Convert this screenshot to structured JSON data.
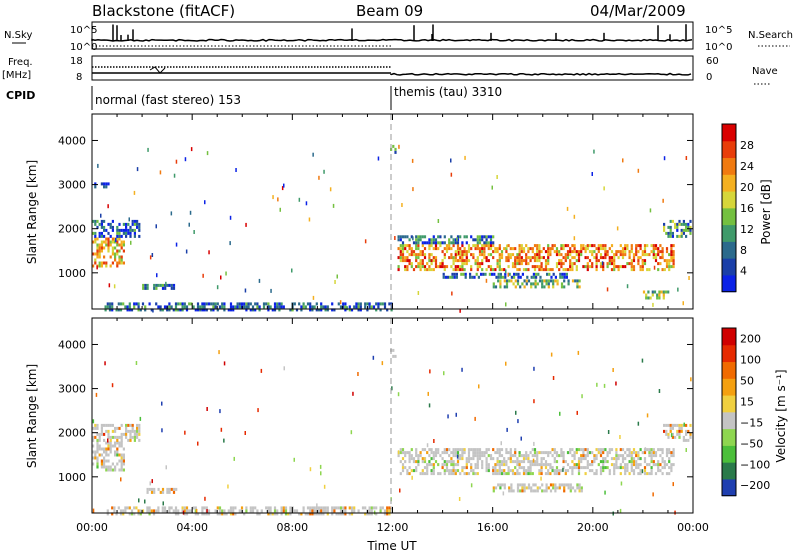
{
  "header": {
    "station": "Blackstone (fitACF)",
    "beam": "Beam 09",
    "date": "04/Mar/2009"
  },
  "top_panels": {
    "nsky_label": "N.Sky",
    "nsearch_label": "N.Search",
    "noise_ticks": [
      "10^5",
      "10^0"
    ],
    "freq_label_1": "Freq.",
    "freq_label_2": "[MHz]",
    "freq_ticks": [
      "18",
      "8"
    ],
    "nave_label": "Nave",
    "nave_ticks": [
      "60",
      "0"
    ],
    "cpid_label": "CPID",
    "cpid_segments": [
      {
        "label": "normal (fast stereo) 153",
        "start_hour": 0,
        "end_hour": 12
      },
      {
        "label": "themis (tau) 3310",
        "start_hour": 12,
        "end_hour": 24
      }
    ]
  },
  "colors": {
    "power_scale": [
      "#0b22e6",
      "#1a3fa8",
      "#2b6a8c",
      "#3f9a6a",
      "#74c040",
      "#d6d63a",
      "#f4b020",
      "#f07a10",
      "#e83d0a",
      "#d90000"
    ],
    "velocity_scale": [
      "#1f3fb0",
      "#2a7a4a",
      "#4bbf3a",
      "#8ed650",
      "#c4c4c4",
      "#f0d040",
      "#f4a010",
      "#f06a00",
      "#e62a00",
      "#d00000"
    ]
  },
  "chart_data": [
    {
      "type": "heatmap",
      "name": "power",
      "ylabel": "Slant Range [km]",
      "yticks": [
        1000,
        2000,
        3000,
        4000
      ],
      "ylim": [
        180,
        4600
      ],
      "xlim": [
        0,
        24
      ],
      "xticks": [
        "00:00",
        "04:00",
        "08:00",
        "12:00",
        "16:00",
        "20:00",
        "00:00"
      ],
      "colorbar": {
        "label": "Power [dB]",
        "ticks": [
          4,
          8,
          12,
          16,
          20,
          24,
          28
        ],
        "range": [
          0,
          32
        ]
      },
      "regions": [
        {
          "t0": 0.0,
          "t1": 1.3,
          "r0": 1150,
          "r1": 1800,
          "level": 0.65
        },
        {
          "t0": 0.0,
          "t1": 1.9,
          "r0": 1800,
          "r1": 2200,
          "level": 0.2
        },
        {
          "t0": 0.0,
          "t1": 0.7,
          "r0": 2950,
          "r1": 3050,
          "level": 0.1
        },
        {
          "t0": 2.0,
          "t1": 3.4,
          "r0": 650,
          "r1": 750,
          "level": 0.25
        },
        {
          "t0": 0.5,
          "t1": 12.0,
          "r0": 180,
          "r1": 330,
          "level": 0.2
        },
        {
          "t0": 12.2,
          "t1": 23.2,
          "r0": 1100,
          "r1": 1650,
          "level": 0.7
        },
        {
          "t0": 12.2,
          "t1": 16.0,
          "r0": 1650,
          "r1": 1850,
          "level": 0.25
        },
        {
          "t0": 16.0,
          "t1": 19.6,
          "r0": 700,
          "r1": 850,
          "level": 0.45
        },
        {
          "t0": 14.0,
          "t1": 19.0,
          "r0": 900,
          "r1": 1000,
          "level": 0.2
        },
        {
          "t0": 22.8,
          "t1": 23.9,
          "r0": 1800,
          "r1": 2200,
          "level": 0.3
        },
        {
          "t0": 22.0,
          "t1": 23.0,
          "r0": 450,
          "r1": 600,
          "level": 0.45
        },
        {
          "t0": 11.9,
          "t1": 12.1,
          "r0": 3700,
          "r1": 3900,
          "level": 0.3
        }
      ]
    },
    {
      "type": "heatmap",
      "name": "velocity",
      "ylabel": "Slant Range [km]",
      "yticks": [
        1000,
        2000,
        3000,
        4000
      ],
      "ylim": [
        180,
        4600
      ],
      "xlim": [
        0,
        24
      ],
      "xticks": [
        "00:00",
        "04:00",
        "08:00",
        "12:00",
        "16:00",
        "20:00",
        "00:00"
      ],
      "xlabel": "Time UT",
      "colorbar": {
        "label": "Velocity [m s⁻¹]",
        "ticks": [
          "200",
          "100",
          "50",
          "15",
          "−15",
          "−50",
          "−100",
          "−200"
        ],
        "range": [
          -250,
          250
        ]
      },
      "regions": [
        {
          "t0": 0.0,
          "t1": 1.3,
          "r0": 1150,
          "r1": 1800,
          "level": 0.5
        },
        {
          "t0": 0.0,
          "t1": 1.9,
          "r0": 1800,
          "r1": 2200,
          "level": 0.6
        },
        {
          "t0": 2.0,
          "t1": 3.4,
          "r0": 650,
          "r1": 750,
          "level": 0.65
        },
        {
          "t0": 0.5,
          "t1": 12.0,
          "r0": 180,
          "r1": 330,
          "level": 0.55
        },
        {
          "t0": 12.2,
          "t1": 23.2,
          "r0": 1100,
          "r1": 1650,
          "level": 0.5
        },
        {
          "t0": 16.0,
          "t1": 19.6,
          "r0": 700,
          "r1": 850,
          "level": 0.5
        },
        {
          "t0": 22.8,
          "t1": 23.9,
          "r0": 1800,
          "r1": 2200,
          "level": 0.6
        },
        {
          "t0": 11.9,
          "t1": 12.1,
          "r0": 3700,
          "r1": 3900,
          "level": 0.1
        }
      ]
    }
  ]
}
